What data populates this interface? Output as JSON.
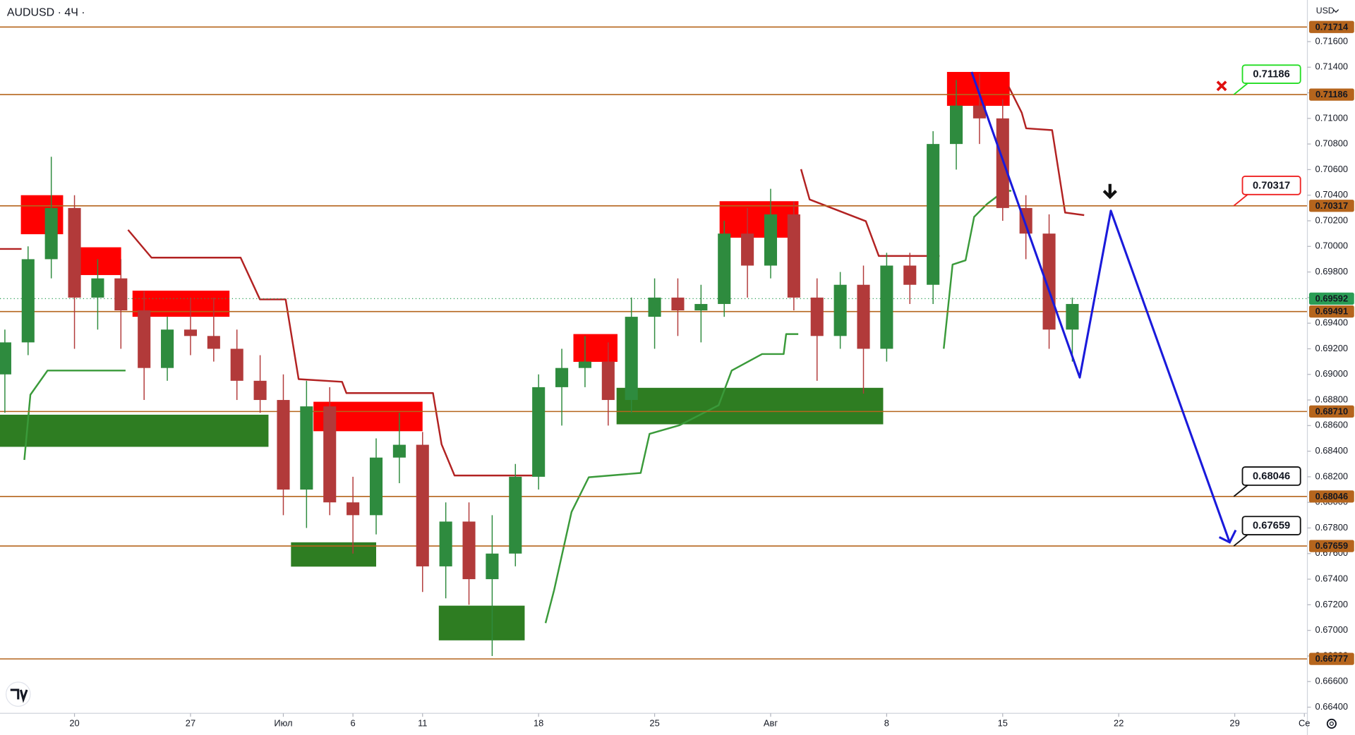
{
  "chart_data": {
    "type": "candlestick",
    "title": "AUDUSD · 4Ч ·",
    "currency": "USD",
    "up_color": "#2e8b3e",
    "down_color": "#b23a3a",
    "xlim": [
      -3.21,
      53.13
    ],
    "ylim": [
      0.66352,
      0.71925
    ],
    "xticks": [
      {
        "value": 0,
        "label": "20"
      },
      {
        "value": 5,
        "label": "27"
      },
      {
        "value": 9,
        "label": "Июл"
      },
      {
        "value": 12,
        "label": "6"
      },
      {
        "value": 15,
        "label": "11"
      },
      {
        "value": 20,
        "label": "18"
      },
      {
        "value": 25,
        "label": "25"
      },
      {
        "value": 30,
        "label": "Авг"
      },
      {
        "value": 35,
        "label": "8"
      },
      {
        "value": 40,
        "label": "15"
      },
      {
        "value": 45,
        "label": "22"
      },
      {
        "value": 50,
        "label": "29"
      },
      {
        "value": 53,
        "label": "Се"
      }
    ],
    "yticks": [
      {
        "value": 0.716,
        "label": "0.71600"
      },
      {
        "value": 0.714,
        "label": "0.71400"
      },
      {
        "value": 0.712,
        "label": "0.71200"
      },
      {
        "value": 0.71,
        "label": "0.71000"
      },
      {
        "value": 0.708,
        "label": "0.70800"
      },
      {
        "value": 0.706,
        "label": "0.70600"
      },
      {
        "value": 0.704,
        "label": "0.70400"
      },
      {
        "value": 0.702,
        "label": "0.70200"
      },
      {
        "value": 0.7,
        "label": "0.70000"
      },
      {
        "value": 0.698,
        "label": "0.69800"
      },
      {
        "value": 0.696,
        "label": "0.69600"
      },
      {
        "value": 0.694,
        "label": "0.69400"
      },
      {
        "value": 0.692,
        "label": "0.69200"
      },
      {
        "value": 0.69,
        "label": "0.69000"
      },
      {
        "value": 0.688,
        "label": "0.68800"
      },
      {
        "value": 0.686,
        "label": "0.68600"
      },
      {
        "value": 0.684,
        "label": "0.68400"
      },
      {
        "value": 0.682,
        "label": "0.68200"
      },
      {
        "value": 0.68,
        "label": "0.68000"
      },
      {
        "value": 0.678,
        "label": "0.67800"
      },
      {
        "value": 0.676,
        "label": "0.67600"
      },
      {
        "value": 0.674,
        "label": "0.67400"
      },
      {
        "value": 0.672,
        "label": "0.67200"
      },
      {
        "value": 0.67,
        "label": "0.67000"
      },
      {
        "value": 0.668,
        "label": "0.66800"
      },
      {
        "value": 0.666,
        "label": "0.66600"
      },
      {
        "value": 0.664,
        "label": "0.66400"
      }
    ],
    "x": [
      -3,
      -2,
      -1,
      0,
      1,
      2,
      3,
      4,
      5,
      6,
      7,
      8,
      9,
      10,
      11,
      12,
      13,
      14,
      15,
      16,
      17,
      18,
      19,
      20,
      21,
      22,
      23,
      24,
      25,
      26,
      27,
      28,
      29,
      30,
      31,
      32,
      33,
      34,
      35,
      36,
      37,
      38,
      39,
      40,
      41,
      42,
      43
    ],
    "open": [
      0.69,
      0.6925,
      0.699,
      0.703,
      0.696,
      0.6975,
      0.695,
      0.6905,
      0.6935,
      0.693,
      0.692,
      0.6895,
      0.688,
      0.681,
      0.6875,
      0.68,
      0.679,
      0.6835,
      0.6845,
      0.675,
      0.6785,
      0.674,
      0.676,
      0.682,
      0.689,
      0.6905,
      0.691,
      0.688,
      0.6945,
      0.696,
      0.695,
      0.6955,
      0.701,
      0.6985,
      0.7025,
      0.696,
      0.693,
      0.697,
      0.692,
      0.6985,
      0.697,
      0.708,
      0.711,
      0.71,
      0.703,
      0.701,
      0.6935
    ],
    "high": [
      0.6935,
      0.7,
      0.707,
      0.704,
      0.699,
      0.699,
      0.6965,
      0.6945,
      0.696,
      0.696,
      0.6935,
      0.6915,
      0.69,
      0.6895,
      0.689,
      0.682,
      0.685,
      0.687,
      0.6855,
      0.68,
      0.68,
      0.679,
      0.683,
      0.69,
      0.692,
      0.693,
      0.6925,
      0.696,
      0.6975,
      0.6975,
      0.697,
      0.702,
      0.703,
      0.7045,
      0.7035,
      0.6975,
      0.698,
      0.6985,
      0.6995,
      0.6995,
      0.709,
      0.713,
      0.7135,
      0.7115,
      0.704,
      0.7025,
      0.696
    ],
    "low": [
      0.687,
      0.6915,
      0.6975,
      0.692,
      0.6935,
      0.692,
      0.688,
      0.6895,
      0.6915,
      0.691,
      0.688,
      0.687,
      0.679,
      0.678,
      0.679,
      0.676,
      0.6775,
      0.6815,
      0.673,
      0.6725,
      0.672,
      0.668,
      0.675,
      0.681,
      0.686,
      0.689,
      0.686,
      0.687,
      0.692,
      0.693,
      0.6925,
      0.6945,
      0.696,
      0.6975,
      0.695,
      0.6895,
      0.692,
      0.6885,
      0.691,
      0.6955,
      0.6955,
      0.706,
      0.708,
      0.702,
      0.699,
      0.692,
      0.691
    ],
    "close": [
      0.6925,
      0.699,
      0.703,
      0.696,
      0.6975,
      0.695,
      0.6905,
      0.6935,
      0.693,
      0.692,
      0.6895,
      0.688,
      0.681,
      0.6875,
      0.68,
      0.679,
      0.6835,
      0.6845,
      0.675,
      0.6785,
      0.674,
      0.676,
      0.682,
      0.689,
      0.6905,
      0.691,
      0.688,
      0.6945,
      0.696,
      0.695,
      0.6955,
      0.701,
      0.6985,
      0.7025,
      0.696,
      0.693,
      0.697,
      0.692,
      0.6985,
      0.697,
      0.708,
      0.711,
      0.71,
      0.703,
      0.701,
      0.6935,
      0.6955
    ],
    "level_color": "#b5651d",
    "levels": [
      0.71714,
      0.71186,
      0.70317,
      0.69491,
      {
        "value": 0.6871,
        "label": "0.68710"
      },
      0.68046,
      0.67659,
      0.66777
    ],
    "current_price": 0.69592,
    "current_color": "#2a9d55",
    "zones": [
      {
        "x": [
          -2.31,
          -0.49
        ],
        "y": [
          0.70095,
          0.704
        ],
        "color": "#ff0000"
      },
      {
        "x": [
          0.19,
          2.01
        ],
        "y": [
          0.69776,
          0.69993
        ],
        "color": "#ff0000"
      },
      {
        "x": [
          2.5,
          6.68
        ],
        "y": [
          0.6945,
          0.69654
        ],
        "color": "#ff0000"
      },
      {
        "x": [
          10.3,
          15.0
        ],
        "y": [
          0.68556,
          0.68786
        ],
        "color": "#ff0000"
      },
      {
        "x": [
          21.5,
          23.4
        ],
        "y": [
          0.69098,
          0.69315
        ],
        "color": "#ff0000"
      },
      {
        "x": [
          27.8,
          31.2
        ],
        "y": [
          0.70068,
          0.70353
        ],
        "color": "#ff0000"
      },
      {
        "x": [
          37.6,
          40.3
        ],
        "y": [
          0.71098,
          0.71363
        ],
        "color": "#ff0000"
      },
      {
        "x": [
          -3.21,
          8.36
        ],
        "y": [
          0.68434,
          0.68685
        ],
        "color": "#2e7d22"
      },
      {
        "x": [
          9.33,
          13.0
        ],
        "y": [
          0.67498,
          0.67688
        ],
        "color": "#2e7d22"
      },
      {
        "x": [
          15.7,
          19.4
        ],
        "y": [
          0.66922,
          0.67193
        ],
        "color": "#2e7d22"
      },
      {
        "x": [
          23.36,
          34.85
        ],
        "y": [
          0.6861,
          0.68895
        ],
        "color": "#2e7d22"
      }
    ],
    "trail_lines": [
      {
        "color": "#b22222",
        "x": [
          -3.21,
          -2.28,
          null,
          2.31,
          3.32,
          7.16,
          7.99,
          9.1,
          9.66,
          11.53,
          11.72,
          15.45,
          15.82,
          16.38,
          20.22,
          null,
          31.31,
          31.68,
          34.1,
          34.66,
          37.28,
          null,
          40.26,
          40.82,
          41.01,
          42.13,
          42.69,
          43.51
        ],
        "values": [
          0.6998,
          0.6998,
          null,
          0.70129,
          0.69912,
          0.69912,
          0.69586,
          0.69586,
          0.68963,
          0.68942,
          0.68854,
          0.68854,
          0.68454,
          0.6821,
          0.6821,
          null,
          0.70603,
          0.70366,
          0.70197,
          0.69925,
          0.69925,
          null,
          0.71247,
          0.71044,
          0.70922,
          0.70908,
          0.70264,
          0.70244
        ]
      },
      {
        "color": "#3a9a3a",
        "x": [
          -2.16,
          -1.9,
          -1.16,
          2.2,
          null,
          20.3,
          20.67,
          21.42,
          22.16,
          24.4,
          24.78,
          26.08,
          27.76,
          28.32,
          29.63,
          30.56,
          30.67,
          31.19,
          null,
          37.46,
          37.84,
          38.4,
          38.77,
          39.33,
          40.07,
          40.37
        ],
        "values": [
          0.68332,
          0.68841,
          0.6903,
          0.6903,
          null,
          0.67057,
          0.67315,
          0.67925,
          0.68196,
          0.6823,
          0.68535,
          0.68603,
          0.68759,
          0.6903,
          0.69159,
          0.69159,
          0.69315,
          0.69315,
          null,
          0.692,
          0.69858,
          0.69891,
          0.7023,
          0.70332,
          0.70434,
          0.70434
        ]
      }
    ],
    "forecast": {
      "color": "#1a1adb",
      "x": [
        38.66,
        43.32,
        44.66,
        49.78
      ],
      "values": [
        0.71363,
        0.68976,
        0.70278,
        0.67688
      ]
    },
    "callouts": [
      {
        "value": 0.71186,
        "color": "#22dd22"
      },
      {
        "value": 0.70317,
        "color": "#ee2222"
      },
      {
        "value": 0.68046,
        "color": "#111111"
      },
      {
        "value": 0.67659,
        "color": "#111111"
      }
    ]
  }
}
